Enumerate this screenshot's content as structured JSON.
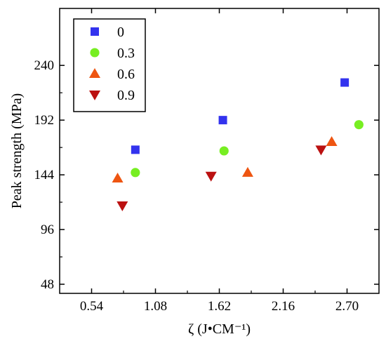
{
  "chart_data": {
    "type": "scatter",
    "xlabel": "ζ (J•CM⁻¹)",
    "ylabel": "Peak strength (MPa)",
    "xlim": [
      0.27,
      2.97
    ],
    "ylim": [
      40,
      290
    ],
    "xticks": [
      0.54,
      1.08,
      1.62,
      2.16,
      2.7
    ],
    "xtick_labels": [
      "0.54",
      "1.08",
      "1.62",
      "2.16",
      "2.70"
    ],
    "yticks": [
      48,
      96,
      144,
      192,
      240
    ],
    "ytick_labels": [
      "48",
      "96",
      "144",
      "192",
      "240"
    ],
    "grid": false,
    "legend_position": "top-left",
    "series": [
      {
        "name": "0",
        "marker": "square",
        "color": "#3333ee",
        "points": [
          {
            "x": 0.91,
            "y": 166
          },
          {
            "x": 1.65,
            "y": 192
          },
          {
            "x": 2.68,
            "y": 225
          }
        ]
      },
      {
        "name": "0.3",
        "marker": "circle",
        "color": "#77ee22",
        "points": [
          {
            "x": 0.91,
            "y": 146
          },
          {
            "x": 1.66,
            "y": 165
          },
          {
            "x": 2.8,
            "y": 188
          }
        ]
      },
      {
        "name": "0.6",
        "marker": "triangle-up",
        "color": "#ee5511",
        "points": [
          {
            "x": 0.76,
            "y": 141
          },
          {
            "x": 1.86,
            "y": 146
          },
          {
            "x": 2.57,
            "y": 173
          }
        ]
      },
      {
        "name": "0.9",
        "marker": "triangle-down",
        "color": "#bb1111",
        "points": [
          {
            "x": 0.8,
            "y": 117
          },
          {
            "x": 1.55,
            "y": 143
          },
          {
            "x": 2.48,
            "y": 166
          }
        ]
      }
    ]
  }
}
